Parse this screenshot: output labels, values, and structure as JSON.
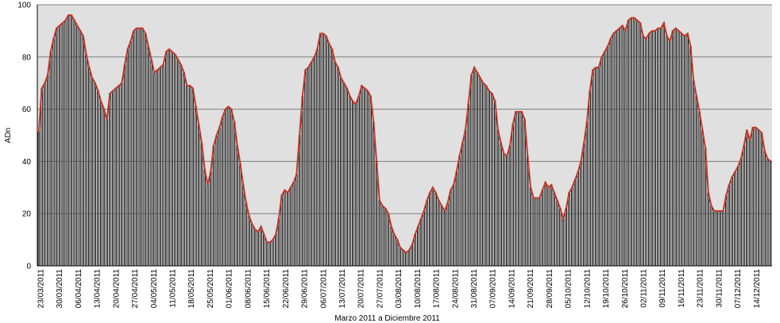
{
  "chart_data": {
    "type": "bar",
    "title": "",
    "xlabel": "Marzo 2011 a Diciembre  2011",
    "ylabel": "ADn",
    "ylim": [
      0,
      100
    ],
    "yticks": [
      0,
      20,
      40,
      60,
      80,
      100
    ],
    "grid": true,
    "legend": "none",
    "colors": {
      "plot_bg": "#e0e0e0",
      "bar": "#000000",
      "line": "#c0392b",
      "grid": "#7f7f7f"
    },
    "x_tick_labels": [
      "23/03/2011",
      "30/03/2011",
      "06/04/2011",
      "13/04/2011",
      "20/04/2011",
      "27/04/2011",
      "04/05/2011",
      "11/05/2011",
      "18/05/2011",
      "25/05/2011",
      "01/06/2011",
      "08/06/2011",
      "15/06/2011",
      "22/06/2011",
      "29/06/2011",
      "06/07/2011",
      "13/07/2011",
      "20/07/2011",
      "27/07/2011",
      "03/08/2011",
      "10/08/2011",
      "17/08/2011",
      "24/08/2011",
      "31/08/2011",
      "07/09/2011",
      "14/09/2011",
      "21/09/2011",
      "28/09/2011",
      "05/10/2011",
      "12/10/2011",
      "19/10/2011",
      "26/10/2011",
      "02/11/2011",
      "09/11/2011",
      "16/11/2011",
      "23/11/2011",
      "30/11/2011",
      "07/12/2011",
      "14/12/2011"
    ],
    "series": [
      {
        "name": "",
        "values": [
          51,
          68,
          70,
          73,
          82,
          87,
          91,
          92,
          93,
          94,
          96,
          96,
          94,
          92,
          90,
          88,
          81,
          76,
          72,
          70,
          67,
          63,
          60,
          56,
          66,
          67,
          68,
          69,
          70,
          77,
          83,
          86,
          90,
          91,
          91,
          91,
          89,
          84,
          79,
          74,
          75,
          76,
          77,
          82,
          83,
          82,
          81,
          79,
          77,
          74,
          69,
          69,
          68,
          61,
          54,
          47,
          37,
          31,
          36,
          46,
          50,
          53,
          57,
          60,
          61,
          60,
          55,
          46,
          39,
          31,
          24,
          19,
          16,
          14,
          13,
          15,
          12,
          9,
          9,
          10,
          12,
          18,
          27,
          29,
          28,
          30,
          32,
          35,
          50,
          65,
          75,
          76,
          78,
          80,
          83,
          89,
          89,
          88,
          85,
          83,
          78,
          76,
          72,
          70,
          68,
          65,
          63,
          62,
          65,
          69,
          68,
          67,
          65,
          55,
          40,
          25,
          23,
          22,
          20,
          15,
          12,
          10,
          7,
          6,
          5,
          6,
          8,
          12,
          15,
          18,
          21,
          25,
          28,
          30,
          28,
          25,
          23,
          21,
          24,
          29,
          31,
          36,
          42,
          47,
          52,
          62,
          73,
          76,
          74,
          72,
          70,
          69,
          67,
          66,
          63,
          52,
          47,
          43,
          42,
          46,
          54,
          59,
          59,
          59,
          56,
          42,
          30,
          26,
          26,
          26,
          29,
          32,
          30,
          31,
          28,
          25,
          22,
          18,
          22,
          28,
          30,
          33,
          36,
          40,
          47,
          55,
          67,
          75,
          76,
          76,
          80,
          82,
          84,
          87,
          89,
          90,
          91,
          92,
          90,
          94,
          95,
          95,
          94,
          93,
          88,
          87,
          89,
          90,
          90,
          91,
          91,
          93,
          88,
          86,
          90,
          91,
          90,
          89,
          88,
          89,
          84,
          71,
          65,
          59,
          52,
          45,
          28,
          23,
          21,
          21,
          21,
          21,
          27,
          31,
          34,
          36,
          38,
          41,
          46,
          52,
          48,
          53,
          53,
          52,
          51,
          44,
          41,
          40
        ]
      }
    ]
  }
}
